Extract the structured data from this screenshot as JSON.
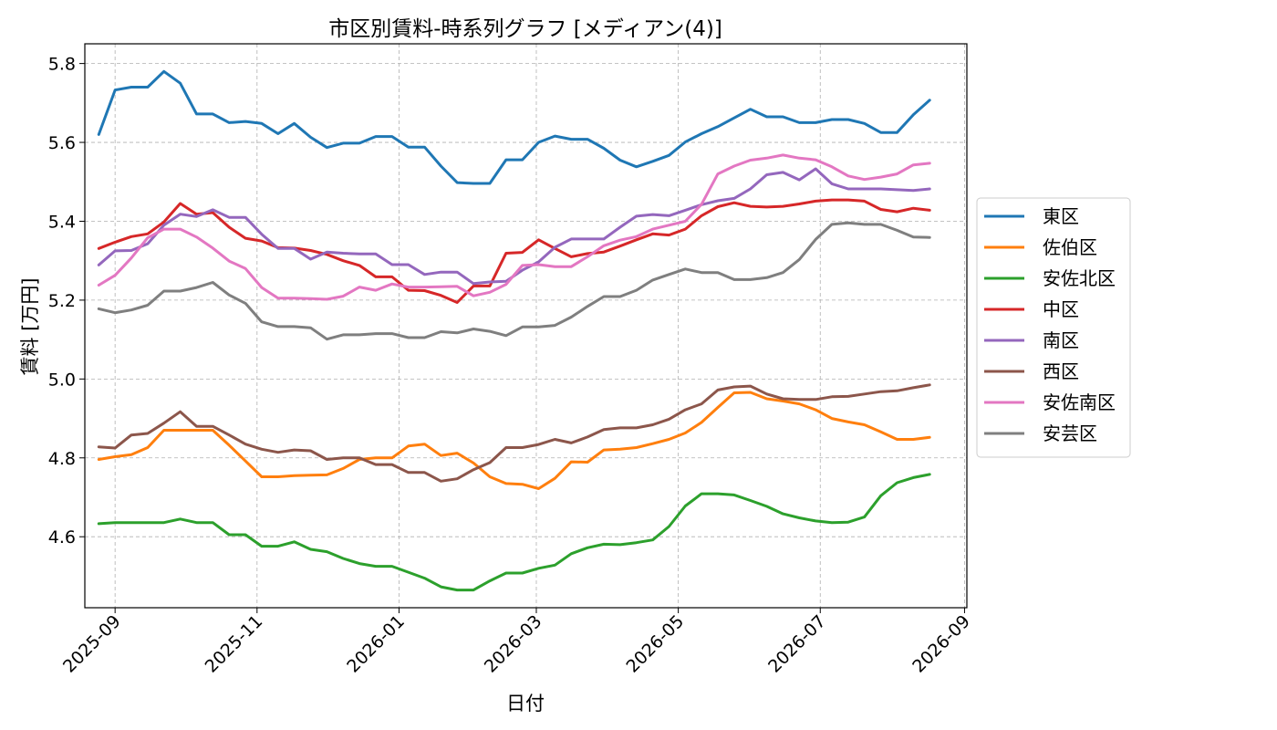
{
  "chart_data": {
    "type": "line",
    "title": "市区別賃料-時系列グラフ [メディアン(4)]",
    "xlabel": "日付",
    "ylabel": "賃料 [万円]",
    "ylim": [
      4.42,
      5.85
    ],
    "xlim": [
      "2025-08-19",
      "2026-09-02"
    ],
    "grid": true,
    "legend_position": "right",
    "x_ticks": [
      "2025-09-01",
      "2025-11-01",
      "2026-01-01",
      "2026-03-01",
      "2026-05-01",
      "2026-07-01",
      "2026-09-01"
    ],
    "x_tick_labels": [
      "2025-09",
      "2025-11",
      "2026-01",
      "2026-03",
      "2026-05",
      "2026-07",
      "2026-09"
    ],
    "y_ticks": [
      4.6,
      4.8,
      5.0,
      5.2,
      5.4,
      5.6,
      5.8
    ],
    "y_tick_labels": [
      "4.6",
      "4.8",
      "5.0",
      "5.2",
      "5.4",
      "5.6",
      "5.8"
    ],
    "x": [
      "2025-08-25",
      "2025-09-01",
      "2025-09-08",
      "2025-09-15",
      "2025-09-22",
      "2025-09-29",
      "2025-10-06",
      "2025-10-13",
      "2025-10-20",
      "2025-10-27",
      "2025-11-03",
      "2025-11-10",
      "2025-11-17",
      "2025-11-24",
      "2025-12-01",
      "2025-12-08",
      "2025-12-15",
      "2025-12-22",
      "2025-12-29",
      "2026-01-05",
      "2026-01-12",
      "2026-01-19",
      "2026-01-26",
      "2026-02-02",
      "2026-02-09",
      "2026-02-16",
      "2026-02-23",
      "2026-03-02",
      "2026-03-09",
      "2026-03-16",
      "2026-03-23",
      "2026-03-30",
      "2026-04-06",
      "2026-04-13",
      "2026-04-20",
      "2026-04-27",
      "2026-05-04",
      "2026-05-11",
      "2026-05-18",
      "2026-05-25",
      "2026-06-01",
      "2026-06-08",
      "2026-06-15",
      "2026-06-22",
      "2026-06-29",
      "2026-07-06",
      "2026-07-13",
      "2026-07-20",
      "2026-07-27",
      "2026-08-03",
      "2026-08-10",
      "2026-08-17"
    ],
    "series": [
      {
        "name": "東区",
        "color": "#1f77b4",
        "values": [
          5.62,
          5.733,
          5.74,
          5.74,
          5.78,
          5.75,
          5.672,
          5.672,
          5.65,
          5.653,
          5.648,
          5.622,
          5.648,
          5.613,
          5.587,
          5.598,
          5.598,
          5.615,
          5.615,
          5.588,
          5.588,
          5.54,
          5.498,
          5.496,
          5.496,
          5.556,
          5.556,
          5.6,
          5.616,
          5.608,
          5.608,
          5.585,
          5.555,
          5.538,
          5.552,
          5.567,
          5.601,
          5.622,
          5.64,
          5.662,
          5.684,
          5.665,
          5.665,
          5.65,
          5.65,
          5.658,
          5.658,
          5.648,
          5.625,
          5.625,
          5.67,
          5.707
        ]
      },
      {
        "name": "佐伯区",
        "color": "#ff7f0e",
        "values": [
          4.796,
          4.803,
          4.808,
          4.826,
          4.87,
          4.87,
          4.87,
          4.87,
          4.832,
          4.792,
          4.752,
          4.752,
          4.755,
          4.756,
          4.757,
          4.773,
          4.796,
          4.8,
          4.8,
          4.83,
          4.835,
          4.806,
          4.812,
          4.787,
          4.752,
          4.735,
          4.733,
          4.722,
          4.748,
          4.79,
          4.789,
          4.82,
          4.822,
          4.826,
          4.836,
          4.847,
          4.863,
          4.89,
          4.928,
          4.965,
          4.966,
          4.95,
          4.944,
          4.937,
          4.922,
          4.9,
          4.891,
          4.884,
          4.866,
          4.847,
          4.847,
          4.852
        ]
      },
      {
        "name": "安佐北区",
        "color": "#2ca02c",
        "values": [
          4.633,
          4.636,
          4.636,
          4.636,
          4.636,
          4.645,
          4.636,
          4.636,
          4.605,
          4.605,
          4.576,
          4.576,
          4.587,
          4.568,
          4.562,
          4.545,
          4.532,
          4.525,
          4.525,
          4.51,
          4.495,
          4.473,
          4.465,
          4.465,
          4.488,
          4.508,
          4.508,
          4.52,
          4.528,
          4.557,
          4.572,
          4.581,
          4.58,
          4.585,
          4.592,
          4.626,
          4.678,
          4.709,
          4.709,
          4.706,
          4.692,
          4.677,
          4.658,
          4.648,
          4.64,
          4.636,
          4.637,
          4.65,
          4.704,
          4.737,
          4.75,
          4.758
        ]
      },
      {
        "name": "中区",
        "color": "#d62728",
        "values": [
          5.331,
          5.347,
          5.361,
          5.368,
          5.398,
          5.445,
          5.418,
          5.422,
          5.385,
          5.357,
          5.35,
          5.333,
          5.332,
          5.326,
          5.316,
          5.3,
          5.288,
          5.259,
          5.259,
          5.225,
          5.224,
          5.212,
          5.194,
          5.236,
          5.236,
          5.319,
          5.321,
          5.353,
          5.331,
          5.31,
          5.318,
          5.322,
          5.337,
          5.353,
          5.368,
          5.365,
          5.38,
          5.414,
          5.437,
          5.447,
          5.438,
          5.436,
          5.438,
          5.444,
          5.451,
          5.454,
          5.454,
          5.451,
          5.43,
          5.424,
          5.433,
          5.428
        ]
      },
      {
        "name": "南区",
        "color": "#9467bd",
        "values": [
          5.289,
          5.325,
          5.326,
          5.343,
          5.39,
          5.418,
          5.412,
          5.429,
          5.41,
          5.41,
          5.367,
          5.331,
          5.331,
          5.304,
          5.322,
          5.319,
          5.317,
          5.317,
          5.29,
          5.29,
          5.265,
          5.271,
          5.271,
          5.242,
          5.246,
          5.248,
          5.276,
          5.297,
          5.334,
          5.355,
          5.355,
          5.355,
          5.385,
          5.413,
          5.417,
          5.414,
          5.428,
          5.442,
          5.452,
          5.458,
          5.482,
          5.518,
          5.524,
          5.505,
          5.533,
          5.495,
          5.482,
          5.482,
          5.482,
          5.48,
          5.478,
          5.482
        ]
      },
      {
        "name": "西区",
        "color": "#8c564b",
        "values": [
          4.828,
          4.825,
          4.858,
          4.862,
          4.888,
          4.917,
          4.88,
          4.88,
          4.858,
          4.835,
          4.822,
          4.814,
          4.82,
          4.818,
          4.796,
          4.8,
          4.8,
          4.783,
          4.783,
          4.763,
          4.763,
          4.741,
          4.747,
          4.77,
          4.788,
          4.826,
          4.826,
          4.834,
          4.847,
          4.838,
          4.853,
          4.872,
          4.876,
          4.876,
          4.884,
          4.898,
          4.922,
          4.937,
          4.972,
          4.98,
          4.982,
          4.962,
          4.95,
          4.948,
          4.948,
          4.955,
          4.956,
          4.962,
          4.968,
          4.97,
          4.978,
          4.985
        ]
      },
      {
        "name": "安佐南区",
        "color": "#e377c2",
        "values": [
          5.238,
          5.263,
          5.307,
          5.358,
          5.38,
          5.38,
          5.36,
          5.332,
          5.299,
          5.28,
          5.232,
          5.205,
          5.205,
          5.204,
          5.202,
          5.21,
          5.233,
          5.225,
          5.241,
          5.233,
          5.233,
          5.234,
          5.235,
          5.211,
          5.22,
          5.24,
          5.288,
          5.29,
          5.285,
          5.285,
          5.31,
          5.338,
          5.352,
          5.361,
          5.38,
          5.39,
          5.4,
          5.443,
          5.52,
          5.54,
          5.555,
          5.56,
          5.568,
          5.56,
          5.556,
          5.538,
          5.515,
          5.506,
          5.512,
          5.52,
          5.543,
          5.547
        ]
      },
      {
        "name": "安芸区",
        "color": "#7f7f7f",
        "values": [
          5.178,
          5.168,
          5.175,
          5.187,
          5.223,
          5.223,
          5.232,
          5.245,
          5.213,
          5.192,
          5.145,
          5.133,
          5.133,
          5.13,
          5.101,
          5.112,
          5.112,
          5.115,
          5.115,
          5.105,
          5.105,
          5.12,
          5.117,
          5.127,
          5.121,
          5.11,
          5.132,
          5.132,
          5.136,
          5.157,
          5.184,
          5.209,
          5.209,
          5.225,
          5.251,
          5.265,
          5.279,
          5.27,
          5.27,
          5.252,
          5.252,
          5.257,
          5.27,
          5.303,
          5.354,
          5.392,
          5.396,
          5.392,
          5.392,
          5.377,
          5.36,
          5.359
        ]
      }
    ]
  }
}
